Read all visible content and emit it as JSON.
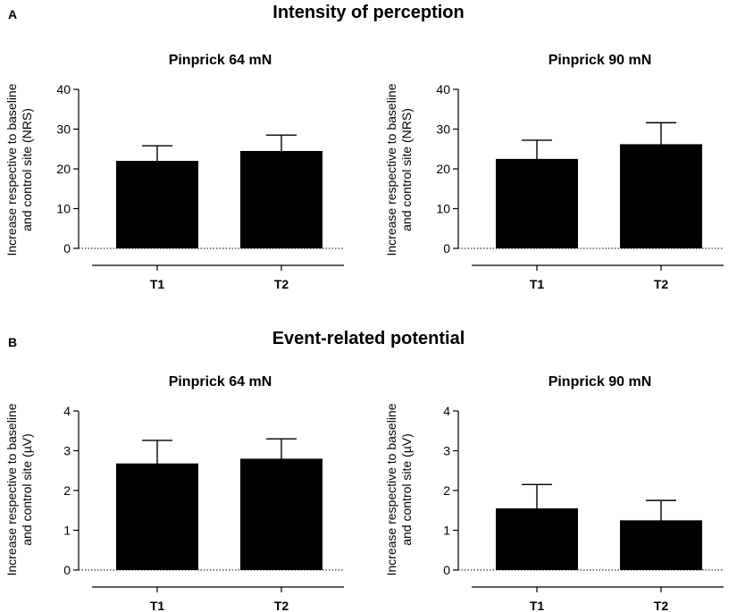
{
  "sections": [
    {
      "letter": "A",
      "title": "Intensity of perception"
    },
    {
      "letter": "B",
      "title": "Event-related potential"
    }
  ],
  "chart_data": [
    {
      "type": "bar",
      "title": "Pinprick 64 mN",
      "ylabel_line1": "Increase respective to baseline",
      "ylabel_line2": "and control site (NRS)",
      "categories": [
        "T1",
        "T2"
      ],
      "values": [
        22,
        24.5
      ],
      "errors": [
        3.8,
        4.0
      ],
      "ylim": [
        0,
        40
      ],
      "yticks": [
        0,
        10,
        20,
        30,
        40
      ],
      "bar_color": "#000000"
    },
    {
      "type": "bar",
      "title": "Pinprick 90 mN",
      "ylabel_line1": "Increase respective to baseline",
      "ylabel_line2": "and control site (NRS)",
      "categories": [
        "T1",
        "T2"
      ],
      "values": [
        22.5,
        26.2
      ],
      "errors": [
        4.7,
        5.4
      ],
      "ylim": [
        0,
        40
      ],
      "yticks": [
        0,
        10,
        20,
        30,
        40
      ],
      "bar_color": "#000000"
    },
    {
      "type": "bar",
      "title": "Pinprick 64 mN",
      "ylabel_line1": "Increase respective to baseline",
      "ylabel_line2": "and control site (µV)",
      "categories": [
        "T1",
        "T2"
      ],
      "values": [
        2.68,
        2.8
      ],
      "errors": [
        0.58,
        0.5
      ],
      "ylim": [
        0,
        4
      ],
      "yticks": [
        0,
        1,
        2,
        3,
        4
      ],
      "bar_color": "#000000"
    },
    {
      "type": "bar",
      "title": "Pinprick 90 mN",
      "ylabel_line1": "Increase respective to baseline",
      "ylabel_line2": "and control site (µV)",
      "categories": [
        "T1",
        "T2"
      ],
      "values": [
        1.55,
        1.25
      ],
      "errors": [
        0.6,
        0.5
      ],
      "ylim": [
        0,
        4
      ],
      "yticks": [
        0,
        1,
        2,
        3,
        4
      ],
      "bar_color": "#000000"
    }
  ]
}
